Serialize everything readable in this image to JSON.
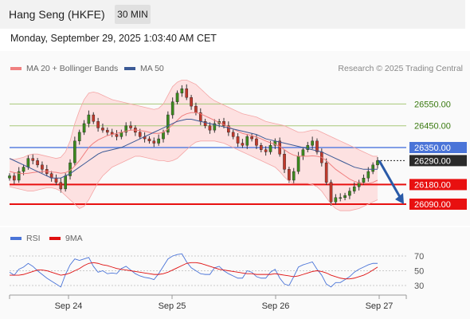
{
  "header": {
    "title": "Hang Seng (HKFE)",
    "timeframe": "30 MIN"
  },
  "datetime": "Monday, September 29, 2025 1:03:40 AM CET",
  "credit": "Research © 2025 Trading Central",
  "legend": {
    "ma20": {
      "label": "MA 20 + Bollinger Bands",
      "color": "#f08080"
    },
    "ma50": {
      "label": "MA 50",
      "color": "#3c5a96"
    },
    "rsi": {
      "label": "RSI",
      "color": "#4a74d8"
    },
    "nine_ma": {
      "label": "9MA",
      "color": "#e01010"
    }
  },
  "chart_data": [
    {
      "type": "line",
      "subtype": "candlestick",
      "title": "Hang Seng (HKFE)",
      "ylim": [
        26000,
        26650
      ],
      "x_ticks": [
        "Sep 24",
        "Sep 25",
        "Sep 26",
        "Sep 27"
      ],
      "levels": [
        {
          "value": 26550,
          "label": "26550.00",
          "kind": "resistance",
          "color": "#a8c878"
        },
        {
          "value": 26450,
          "label": "26450.00",
          "kind": "resistance",
          "color": "#a8c878"
        },
        {
          "value": 26350,
          "label": "26350.00",
          "kind": "pivot",
          "color": "#5b80e0"
        },
        {
          "value": 26290,
          "label": "26290.00",
          "kind": "last",
          "color": "#222222"
        },
        {
          "value": 26180,
          "label": "26180.00",
          "kind": "support",
          "color": "#e81010"
        },
        {
          "value": 26090,
          "label": "26090.00",
          "kind": "support",
          "color": "#e81010"
        }
      ],
      "prices": [
        26220,
        26200,
        26240,
        26260,
        26300,
        26290,
        26270,
        26250,
        26230,
        26210,
        26190,
        26160,
        26220,
        26280,
        26380,
        26420,
        26460,
        26500,
        26470,
        26440,
        26430,
        26420,
        26410,
        26400,
        26420,
        26450,
        26440,
        26420,
        26400,
        26390,
        26380,
        26370,
        26390,
        26420,
        26500,
        26560,
        26600,
        26620,
        26580,
        26540,
        26510,
        26470,
        26450,
        26430,
        26460,
        26470,
        26450,
        26420,
        26400,
        26370,
        26360,
        26400,
        26390,
        26360,
        26340,
        26330,
        26360,
        26380,
        26320,
        26250,
        26200,
        26240,
        26310,
        26340,
        26360,
        26380,
        26330,
        26280,
        26190,
        26100,
        26120,
        26120,
        26130,
        26150,
        26170,
        26190,
        26210,
        26240,
        26270,
        26290
      ],
      "ma50": [
        26300,
        26290,
        26280,
        26270,
        26260,
        26250,
        26240,
        26230,
        26220,
        26210,
        26210,
        26210,
        26220,
        26230,
        26245,
        26260,
        26275,
        26290,
        26305,
        26320,
        26330,
        26335,
        26340,
        26345,
        26350,
        26360,
        26370,
        26380,
        26390,
        26400,
        26410,
        26420,
        26430,
        26440,
        26450,
        26460,
        26470,
        26475,
        26480,
        26480,
        26475,
        26470,
        26465,
        26460,
        26455,
        26450,
        26445,
        26440,
        26435,
        26430,
        26425,
        26420,
        26415,
        26410,
        26400,
        26390,
        26385,
        26380,
        26375,
        26370,
        26365,
        26360,
        26355,
        26350,
        26345,
        26340,
        26335,
        26330,
        26320,
        26310,
        26300,
        26290,
        26280,
        26270,
        26260,
        26255,
        26250,
        26250,
        26250,
        26250
      ],
      "ma20": [
        26240,
        26235,
        26232,
        26230,
        26232,
        26235,
        26238,
        26240,
        26240,
        26238,
        26236,
        26232,
        26235,
        26245,
        26265,
        26290,
        26320,
        26350,
        26370,
        26385,
        26395,
        26405,
        26410,
        26415,
        26420,
        26425,
        26430,
        26430,
        26428,
        26425,
        26420,
        26415,
        26415,
        26420,
        26435,
        26455,
        26475,
        26495,
        26505,
        26510,
        26510,
        26505,
        26495,
        26485,
        26475,
        26465,
        26455,
        26445,
        26435,
        26425,
        26415,
        26410,
        26405,
        26398,
        26390,
        26380,
        26372,
        26365,
        26355,
        26340,
        26325,
        26315,
        26310,
        26310,
        26310,
        26312,
        26310,
        26305,
        26290,
        26270,
        26250,
        26235,
        26220,
        26205,
        26195,
        26188,
        26185,
        26185,
        26190,
        26200
      ],
      "bb_upper": [
        26300,
        26295,
        26300,
        26305,
        26315,
        26320,
        26320,
        26315,
        26310,
        26305,
        26300,
        26305,
        26330,
        26380,
        26460,
        26520,
        26570,
        26600,
        26605,
        26600,
        26590,
        26580,
        26570,
        26565,
        26560,
        26555,
        26550,
        26545,
        26540,
        26535,
        26530,
        26525,
        26530,
        26550,
        26590,
        26630,
        26650,
        26660,
        26660,
        26650,
        26640,
        26620,
        26600,
        26580,
        26565,
        26555,
        26545,
        26535,
        26525,
        26515,
        26505,
        26500,
        26495,
        26490,
        26480,
        26470,
        26465,
        26460,
        26455,
        26450,
        26440,
        26430,
        26420,
        26420,
        26425,
        26430,
        26430,
        26420,
        26410,
        26400,
        26390,
        26380,
        26370,
        26360,
        26350,
        26340,
        26330,
        26320,
        26310,
        26310
      ],
      "bb_lower": [
        26170,
        26165,
        26160,
        26155,
        26150,
        26150,
        26155,
        26160,
        26165,
        26165,
        26160,
        26150,
        26130,
        26110,
        26090,
        26070,
        26080,
        26110,
        26150,
        26190,
        26220,
        26240,
        26260,
        26270,
        26280,
        26290,
        26300,
        26310,
        26310,
        26305,
        26300,
        26295,
        26290,
        26290,
        26285,
        26290,
        26300,
        26320,
        26340,
        26360,
        26375,
        26380,
        26380,
        26380,
        26380,
        26375,
        26370,
        26360,
        26350,
        26340,
        26330,
        26320,
        26310,
        26300,
        26290,
        26280,
        26270,
        26260,
        26240,
        26215,
        26195,
        26185,
        26185,
        26185,
        26185,
        26180,
        26170,
        26150,
        26120,
        26090,
        26070,
        26060,
        26060,
        26060,
        26065,
        26070,
        26080,
        26090,
        26100,
        26110
      ]
    },
    {
      "type": "line",
      "ylim": [
        20,
        80
      ],
      "y_ticks": [
        70,
        50,
        30
      ],
      "rsi": [
        48,
        44,
        52,
        55,
        60,
        56,
        50,
        45,
        40,
        36,
        32,
        28,
        45,
        58,
        66,
        64,
        66,
        68,
        56,
        48,
        50,
        46,
        47,
        46,
        53,
        56,
        51,
        46,
        43,
        41,
        40,
        38,
        46,
        56,
        66,
        70,
        72,
        73,
        62,
        54,
        50,
        46,
        45,
        45,
        54,
        56,
        50,
        46,
        43,
        40,
        40,
        50,
        48,
        42,
        40,
        40,
        48,
        52,
        40,
        32,
        30,
        42,
        55,
        58,
        60,
        62,
        52,
        44,
        32,
        28,
        34,
        34,
        38,
        42,
        48,
        52,
        55,
        58,
        60,
        60
      ],
      "ma9": [
        44,
        44,
        44,
        45,
        47,
        49,
        51,
        51,
        50,
        48,
        46,
        44,
        45,
        47,
        50,
        53,
        57,
        60,
        61,
        60,
        58,
        57,
        55,
        53,
        52,
        51,
        50,
        49,
        48,
        47,
        46,
        45,
        45,
        46,
        48,
        51,
        54,
        57,
        60,
        61,
        61,
        60,
        58,
        56,
        54,
        52,
        51,
        50,
        49,
        48,
        47,
        46,
        46,
        45,
        45,
        45,
        45,
        46,
        45,
        44,
        43,
        42,
        43,
        45,
        47,
        49,
        50,
        49,
        47,
        44,
        42,
        40,
        39,
        39,
        40,
        42,
        44,
        47,
        51,
        55
      ]
    }
  ]
}
